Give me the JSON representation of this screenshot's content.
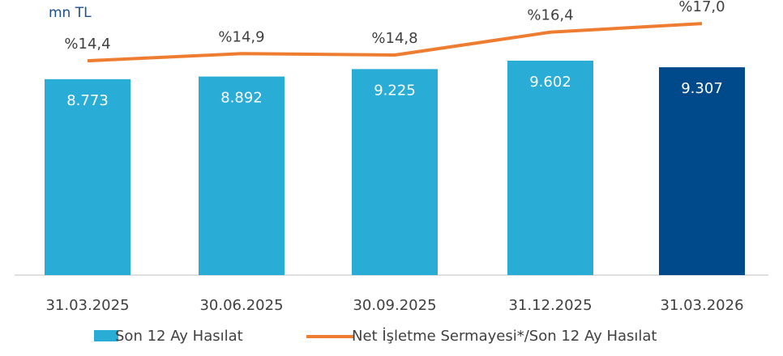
{
  "chart_data": {
    "type": "bar",
    "unit_label": "mn TL",
    "categories": [
      "31.03.2025",
      "30.06.2025",
      "30.09.2025",
      "31.12.2025",
      "31.03.2026"
    ],
    "series": [
      {
        "name": "Son 12 Ay Hasılat",
        "type": "bar",
        "color": "#29acd6",
        "colors": [
          "#29acd6",
          "#29acd6",
          "#29acd6",
          "#29acd6",
          "#004a8b"
        ],
        "values": [
          8773,
          8892,
          9225,
          9602,
          9307
        ],
        "value_labels": [
          "8.773",
          "8.892",
          "9.225",
          "9.602",
          "9.307"
        ]
      },
      {
        "name": "Net İşletme Sermayesi*/Son 12 Ay Hasılat",
        "type": "line",
        "axis": "y2",
        "color": "#ee7d31",
        "values": [
          14.4,
          14.9,
          14.8,
          16.4,
          17.0
        ],
        "value_labels": [
          "%14,4",
          "%14,9",
          "%14,8",
          "%16,4",
          "%17,0"
        ]
      }
    ]
  }
}
